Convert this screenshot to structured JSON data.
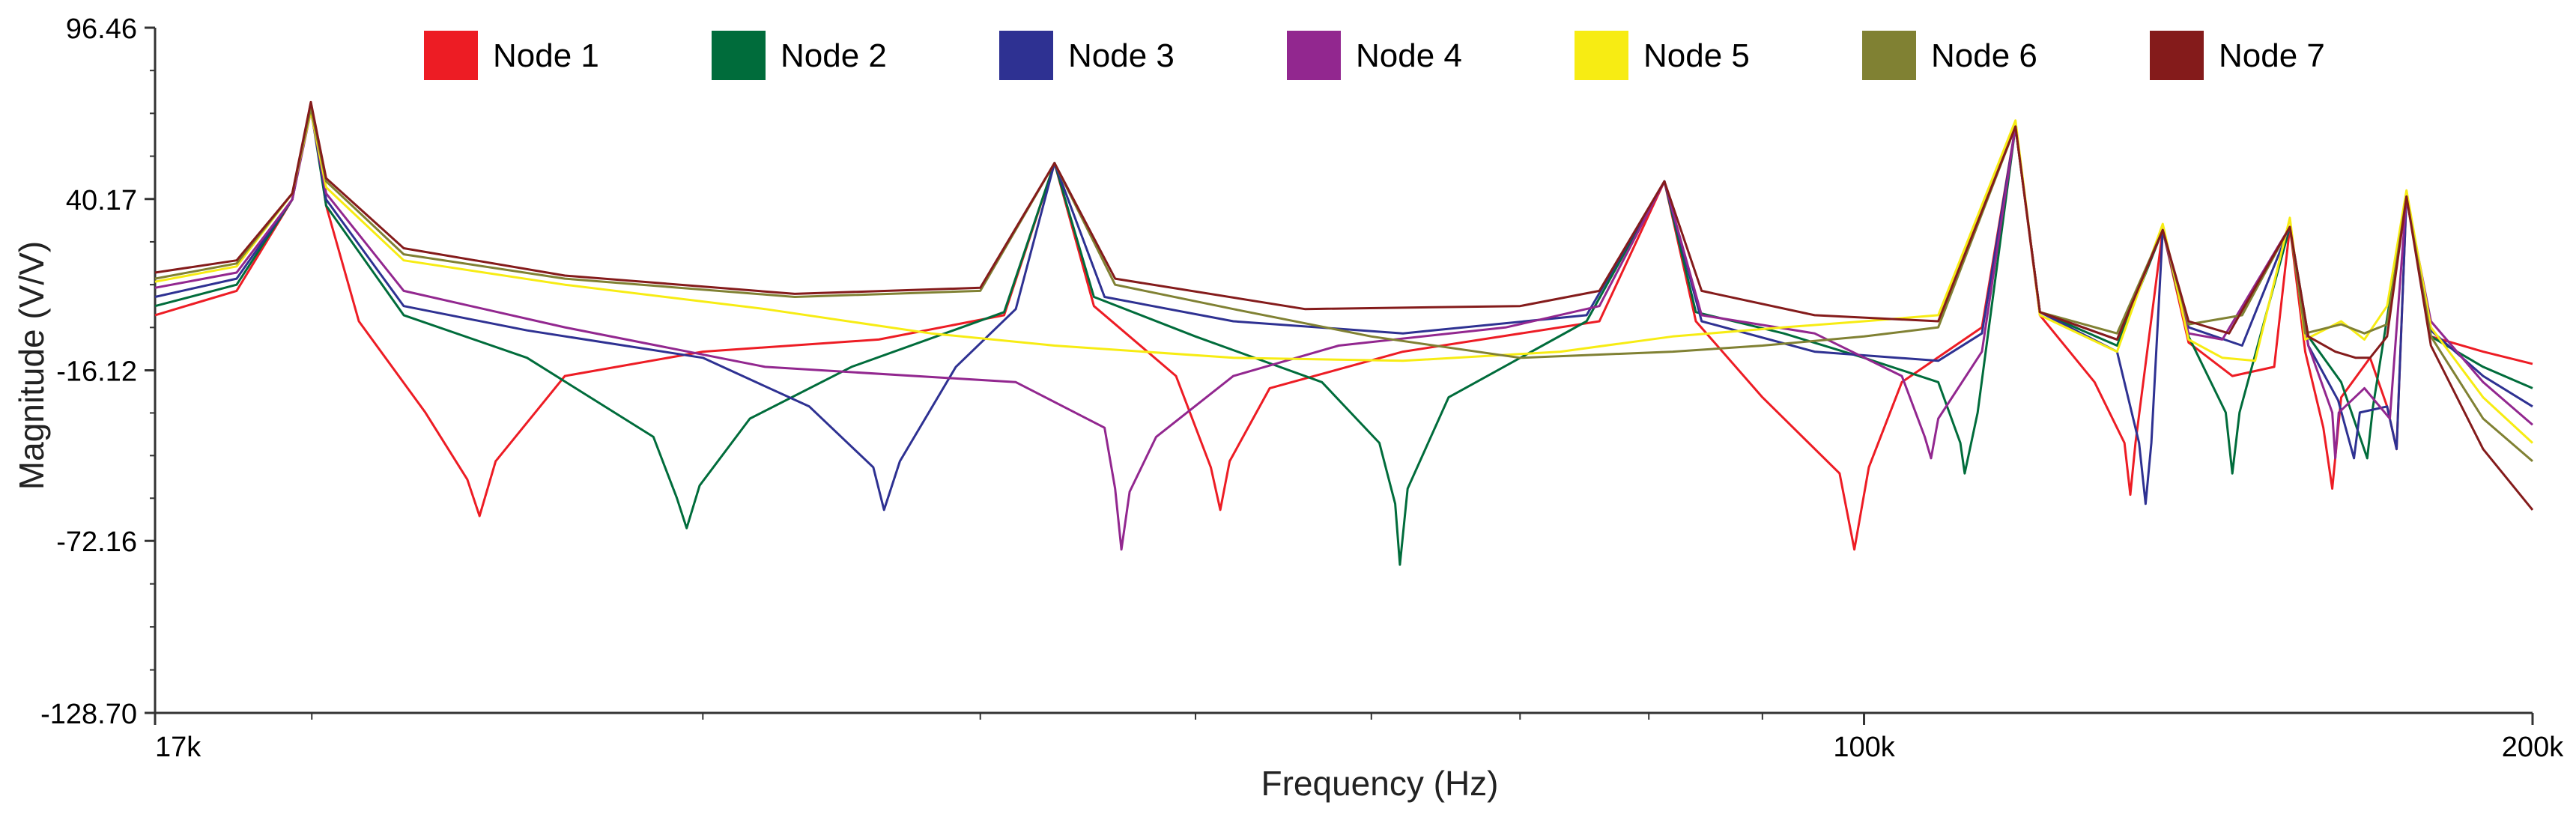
{
  "chart_data": {
    "type": "line",
    "title": "",
    "xlabel": "Frequency (Hz)",
    "ylabel": "Magnitude (V/V)",
    "x_scale": "log",
    "xlim": [
      17000,
      200000
    ],
    "ylim": [
      -128.7,
      96.46
    ],
    "x_tick_labels": [
      {
        "value": 17000,
        "label": "17k"
      },
      {
        "value": 100000,
        "label": "100k"
      },
      {
        "value": 200000,
        "label": "200k"
      }
    ],
    "y_tick_labels": [
      {
        "value": 96.46,
        "label": "96.46"
      },
      {
        "value": 40.17,
        "label": "40.17"
      },
      {
        "value": -16.12,
        "label": "-16.12"
      },
      {
        "value": -72.16,
        "label": "-72.16"
      },
      {
        "value": -128.7,
        "label": "-128.70"
      }
    ],
    "legend_placement": "top",
    "resonances": [
      {
        "freq": 19980,
        "peak": 72
      },
      {
        "freq": 43200,
        "peak": 52
      },
      {
        "freq": 81300,
        "peak": 46
      },
      {
        "freq": 117000,
        "peak": 64
      },
      {
        "freq": 136300,
        "peak": 30
      },
      {
        "freq": 155500,
        "peak": 31
      },
      {
        "freq": 175500,
        "peak": 41
      }
    ],
    "series": [
      {
        "name": "Node 1",
        "color": "#ed1c24",
        "points": [
          [
            17000,
            2
          ],
          [
            18500,
            10
          ],
          [
            19600,
            40
          ],
          [
            19980,
            72
          ],
          [
            20300,
            38
          ],
          [
            21000,
            0
          ],
          [
            22500,
            -30
          ],
          [
            23500,
            -52
          ],
          [
            23800,
            -64
          ],
          [
            24200,
            -46
          ],
          [
            26000,
            -18
          ],
          [
            30000,
            -10
          ],
          [
            36000,
            -6
          ],
          [
            41000,
            2
          ],
          [
            43200,
            52
          ],
          [
            45000,
            5
          ],
          [
            49000,
            -18
          ],
          [
            50800,
            -48
          ],
          [
            51300,
            -62
          ],
          [
            51800,
            -46
          ],
          [
            54000,
            -22
          ],
          [
            62000,
            -10
          ],
          [
            76000,
            0
          ],
          [
            81300,
            46
          ],
          [
            84000,
            0
          ],
          [
            90000,
            -25
          ],
          [
            97500,
            -50
          ],
          [
            99000,
            -75
          ],
          [
            100500,
            -48
          ],
          [
            104000,
            -20
          ],
          [
            113000,
            -2
          ],
          [
            117000,
            64
          ],
          [
            120000,
            2
          ],
          [
            127000,
            -20
          ],
          [
            131000,
            -40
          ],
          [
            131800,
            -57
          ],
          [
            132500,
            -40
          ],
          [
            136300,
            30
          ],
          [
            140000,
            -7
          ],
          [
            146500,
            -18
          ],
          [
            153000,
            -15
          ],
          [
            155500,
            31
          ],
          [
            158000,
            -10
          ],
          [
            161000,
            -35
          ],
          [
            162500,
            -55
          ],
          [
            164000,
            -25
          ],
          [
            169000,
            -12
          ],
          [
            172000,
            -28
          ],
          [
            173700,
            -42
          ],
          [
            175500,
            41
          ],
          [
            180000,
            -5
          ],
          [
            190000,
            -10
          ],
          [
            200000,
            -14
          ]
        ]
      },
      {
        "name": "Node 2",
        "color": "#006c3b",
        "points": [
          [
            17000,
            5
          ],
          [
            18500,
            12
          ],
          [
            19600,
            40
          ],
          [
            19980,
            70
          ],
          [
            20300,
            38
          ],
          [
            22000,
            2
          ],
          [
            25000,
            -12
          ],
          [
            28500,
            -38
          ],
          [
            29200,
            -58
          ],
          [
            29500,
            -68
          ],
          [
            29900,
            -54
          ],
          [
            31500,
            -32
          ],
          [
            35000,
            -15
          ],
          [
            41000,
            3
          ],
          [
            43200,
            52
          ],
          [
            45000,
            8
          ],
          [
            50000,
            -5
          ],
          [
            57000,
            -20
          ],
          [
            60500,
            -40
          ],
          [
            61500,
            -60
          ],
          [
            61800,
            -80
          ],
          [
            62300,
            -55
          ],
          [
            65000,
            -25
          ],
          [
            75000,
            0
          ],
          [
            81300,
            46
          ],
          [
            84000,
            3
          ],
          [
            92000,
            -4
          ],
          [
            100000,
            -12
          ],
          [
            108000,
            -20
          ],
          [
            110500,
            -40
          ],
          [
            111000,
            -50
          ],
          [
            112500,
            -30
          ],
          [
            117000,
            64
          ],
          [
            120000,
            3
          ],
          [
            130000,
            -8
          ],
          [
            136300,
            30
          ],
          [
            140000,
            -5
          ],
          [
            145500,
            -30
          ],
          [
            146500,
            -50
          ],
          [
            147600,
            -30
          ],
          [
            155500,
            31
          ],
          [
            158500,
            -5
          ],
          [
            164000,
            -20
          ],
          [
            168500,
            -45
          ],
          [
            169500,
            -28
          ],
          [
            175500,
            41
          ],
          [
            180000,
            -5
          ],
          [
            190000,
            -15
          ],
          [
            200000,
            -22
          ]
        ]
      },
      {
        "name": "Node 3",
        "color": "#2e3192",
        "points": [
          [
            17000,
            8
          ],
          [
            18500,
            14
          ],
          [
            19600,
            40
          ],
          [
            19980,
            70
          ],
          [
            20300,
            40
          ],
          [
            22000,
            5
          ],
          [
            25000,
            -3
          ],
          [
            30000,
            -12
          ],
          [
            33500,
            -28
          ],
          [
            35800,
            -48
          ],
          [
            36200,
            -62
          ],
          [
            36800,
            -46
          ],
          [
            39000,
            -15
          ],
          [
            41500,
            4
          ],
          [
            43200,
            52
          ],
          [
            45500,
            8
          ],
          [
            52000,
            0
          ],
          [
            62000,
            -4
          ],
          [
            75000,
            2
          ],
          [
            81300,
            46
          ],
          [
            84500,
            0
          ],
          [
            95000,
            -10
          ],
          [
            108000,
            -13
          ],
          [
            113000,
            -4
          ],
          [
            117000,
            64
          ],
          [
            120000,
            3
          ],
          [
            130000,
            -10
          ],
          [
            133000,
            -40
          ],
          [
            133900,
            -60
          ],
          [
            134700,
            -40
          ],
          [
            136300,
            30
          ],
          [
            140000,
            -2
          ],
          [
            148000,
            -8
          ],
          [
            155500,
            31
          ],
          [
            158500,
            -8
          ],
          [
            163500,
            -26
          ],
          [
            166200,
            -45
          ],
          [
            167200,
            -30
          ],
          [
            172000,
            -28
          ],
          [
            173700,
            -42
          ],
          [
            175500,
            41
          ],
          [
            180000,
            -3
          ],
          [
            190000,
            -18
          ],
          [
            200000,
            -28
          ]
        ]
      },
      {
        "name": "Node 4",
        "color": "#92278f",
        "points": [
          [
            17000,
            11
          ],
          [
            18500,
            16
          ],
          [
            19600,
            40
          ],
          [
            19980,
            69
          ],
          [
            20300,
            42
          ],
          [
            22000,
            10
          ],
          [
            26000,
            -2
          ],
          [
            32000,
            -15
          ],
          [
            41500,
            -20
          ],
          [
            45500,
            -35
          ],
          [
            46000,
            -55
          ],
          [
            46300,
            -75
          ],
          [
            46700,
            -56
          ],
          [
            48000,
            -38
          ],
          [
            52000,
            -18
          ],
          [
            58000,
            -8
          ],
          [
            69000,
            -2
          ],
          [
            76000,
            5
          ],
          [
            81300,
            46
          ],
          [
            84500,
            2
          ],
          [
            95000,
            -4
          ],
          [
            104000,
            -18
          ],
          [
            106500,
            -38
          ],
          [
            107200,
            -45
          ],
          [
            108000,
            -32
          ],
          [
            113000,
            -10
          ],
          [
            117000,
            64
          ],
          [
            120000,
            3
          ],
          [
            130000,
            -6
          ],
          [
            136300,
            30
          ],
          [
            140000,
            -4
          ],
          [
            145000,
            -6
          ],
          [
            155500,
            31
          ],
          [
            158500,
            -8
          ],
          [
            162500,
            -30
          ],
          [
            163000,
            -45
          ],
          [
            163600,
            -30
          ],
          [
            168000,
            -22
          ],
          [
            172500,
            -32
          ],
          [
            175500,
            41
          ],
          [
            180000,
            0
          ],
          [
            190000,
            -20
          ],
          [
            200000,
            -34
          ]
        ]
      },
      {
        "name": "Node 5",
        "color": "#f7ec13",
        "points": [
          [
            17000,
            13
          ],
          [
            18500,
            18
          ],
          [
            19600,
            42
          ],
          [
            19980,
            69
          ],
          [
            20300,
            44
          ],
          [
            22000,
            20
          ],
          [
            26000,
            12
          ],
          [
            32000,
            4
          ],
          [
            38000,
            -4
          ],
          [
            43200,
            -8
          ],
          [
            52000,
            -12
          ],
          [
            62000,
            -13
          ],
          [
            73000,
            -10
          ],
          [
            82000,
            -5
          ],
          [
            92000,
            -2
          ],
          [
            100000,
            0
          ],
          [
            108000,
            2
          ],
          [
            117000,
            66
          ],
          [
            120000,
            2
          ],
          [
            130000,
            -10
          ],
          [
            136300,
            32
          ],
          [
            140000,
            -6
          ],
          [
            145000,
            -12
          ],
          [
            150000,
            -13
          ],
          [
            155500,
            34
          ],
          [
            158000,
            -6
          ],
          [
            164000,
            0
          ],
          [
            168000,
            -6
          ],
          [
            172000,
            5
          ],
          [
            175500,
            43
          ],
          [
            180000,
            -2
          ],
          [
            190000,
            -25
          ],
          [
            200000,
            -40
          ]
        ]
      },
      {
        "name": "Node 6",
        "color": "#808133",
        "points": [
          [
            17000,
            14
          ],
          [
            18500,
            19
          ],
          [
            19600,
            42
          ],
          [
            19980,
            70
          ],
          [
            20300,
            46
          ],
          [
            22000,
            22
          ],
          [
            26000,
            14
          ],
          [
            33000,
            8
          ],
          [
            40000,
            10
          ],
          [
            43200,
            52
          ],
          [
            46000,
            12
          ],
          [
            52000,
            4
          ],
          [
            60000,
            -5
          ],
          [
            70000,
            -12
          ],
          [
            82000,
            -10
          ],
          [
            90000,
            -8
          ],
          [
            100000,
            -5
          ],
          [
            108000,
            -2
          ],
          [
            117000,
            64
          ],
          [
            120000,
            3
          ],
          [
            130000,
            -4
          ],
          [
            136300,
            30
          ],
          [
            140000,
            -1
          ],
          [
            148000,
            2
          ],
          [
            155500,
            31
          ],
          [
            158000,
            -4
          ],
          [
            164000,
            -1
          ],
          [
            168000,
            -4
          ],
          [
            172000,
            -1
          ],
          [
            175500,
            41
          ],
          [
            180000,
            -5
          ],
          [
            190000,
            -32
          ],
          [
            200000,
            -46
          ]
        ]
      },
      {
        "name": "Node 7",
        "color": "#841b1b",
        "points": [
          [
            17000,
            16
          ],
          [
            18500,
            20
          ],
          [
            19600,
            42
          ],
          [
            19980,
            72
          ],
          [
            20300,
            47
          ],
          [
            22000,
            24
          ],
          [
            26000,
            15
          ],
          [
            33000,
            9
          ],
          [
            40000,
            11
          ],
          [
            43200,
            52
          ],
          [
            46000,
            14
          ],
          [
            56000,
            4
          ],
          [
            70000,
            5
          ],
          [
            76000,
            10
          ],
          [
            81300,
            46
          ],
          [
            84500,
            10
          ],
          [
            95000,
            2
          ],
          [
            108000,
            0
          ],
          [
            117000,
            64
          ],
          [
            120000,
            3
          ],
          [
            130000,
            -6
          ],
          [
            136300,
            30
          ],
          [
            140000,
            0
          ],
          [
            146000,
            -4
          ],
          [
            155500,
            31
          ],
          [
            158500,
            -5
          ],
          [
            163000,
            -10
          ],
          [
            166500,
            -12
          ],
          [
            169000,
            -12
          ],
          [
            172000,
            -5
          ],
          [
            175500,
            41
          ],
          [
            180000,
            -8
          ],
          [
            190000,
            -42
          ],
          [
            200000,
            -62
          ]
        ]
      }
    ]
  }
}
